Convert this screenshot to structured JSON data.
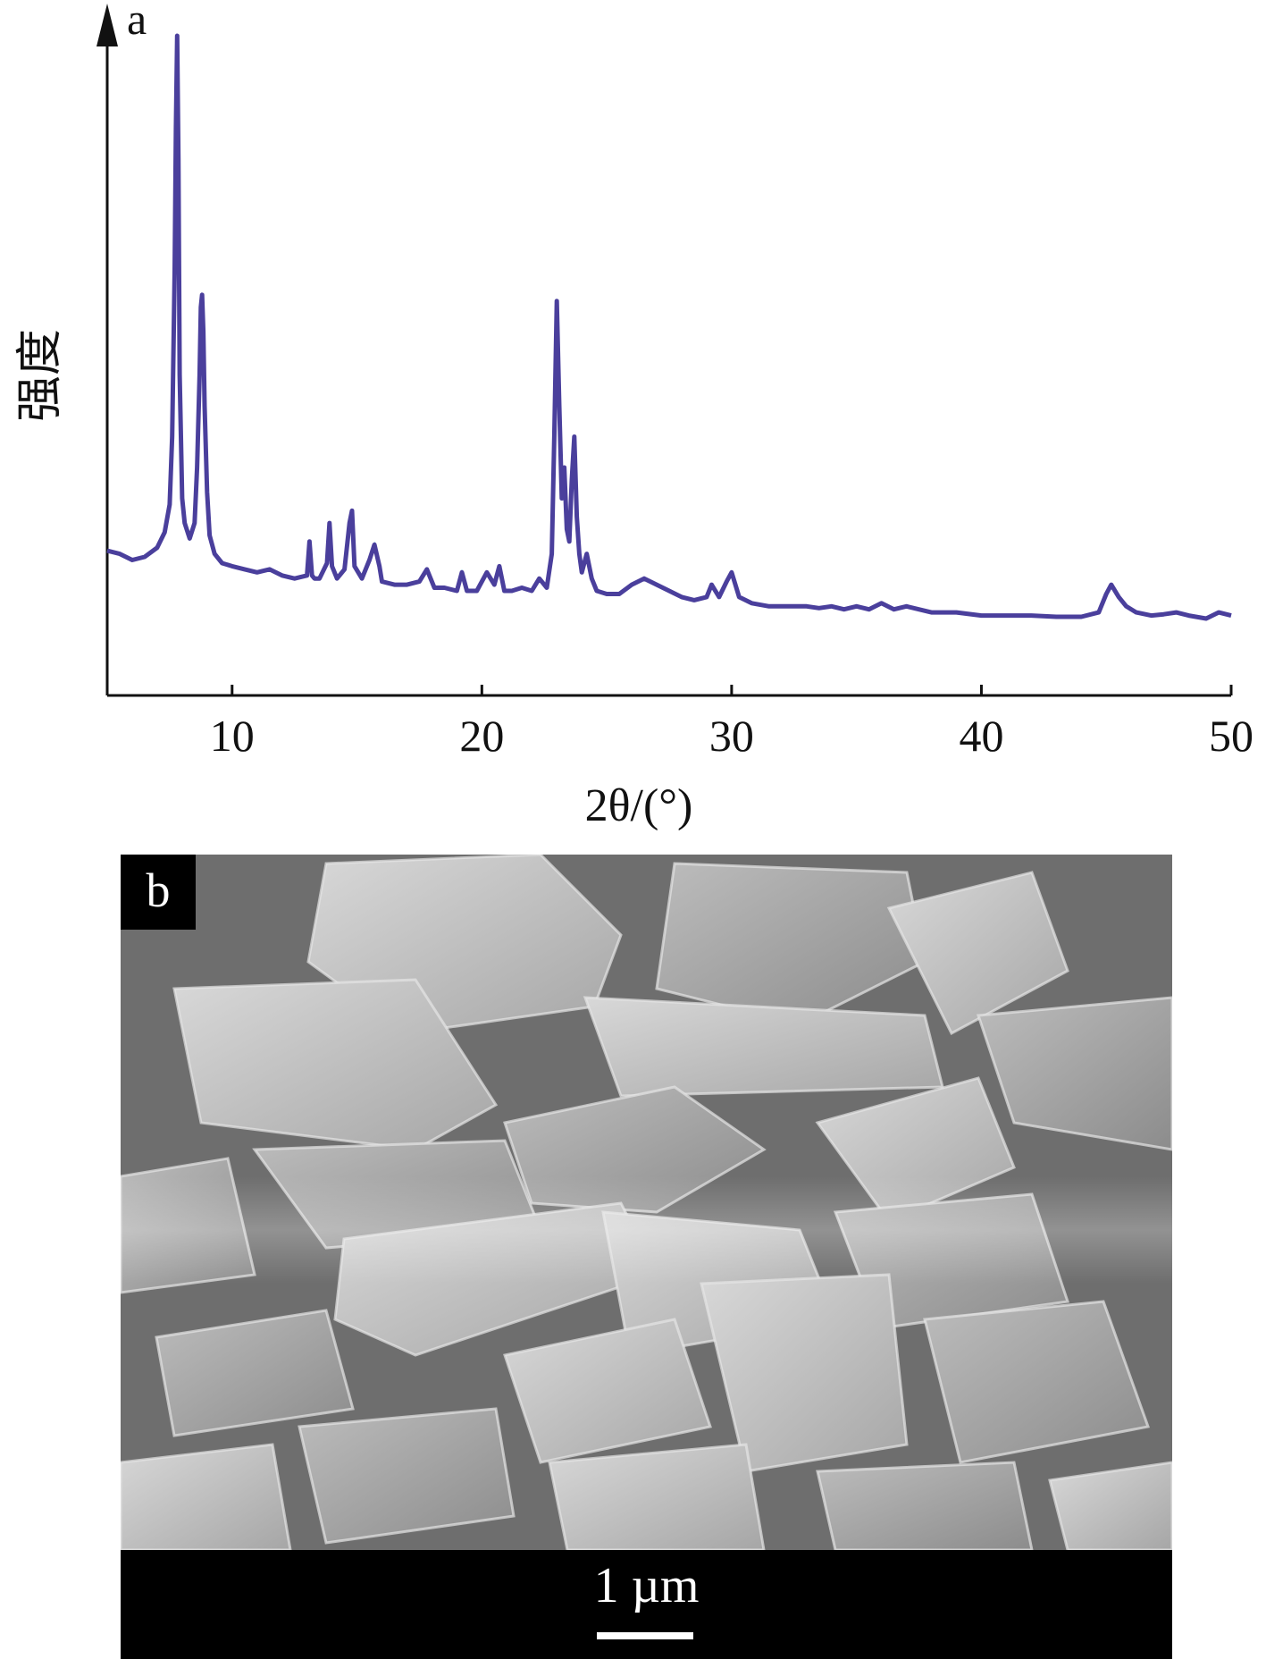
{
  "panel_a": {
    "label": "a",
    "ylabel": "强度",
    "xlabel": "2θ/(°)",
    "line_color": "#4a3f9c",
    "highlight_color": "#59d4e8"
  },
  "panel_b": {
    "label": "b",
    "scale_bar_label": "1 µm",
    "description_colors": {
      "background": "#6f6f6f",
      "crystal_light": "#cfcfcf",
      "crystal_mid": "#a9a9a9",
      "crystal_dark": "#8a8a8a"
    }
  },
  "chart_data": {
    "type": "line",
    "xlabel": "2θ/(°)",
    "ylabel": "强度",
    "xlim": [
      5,
      50
    ],
    "ylim": [
      0,
      100
    ],
    "xticks": [
      10,
      20,
      30,
      40,
      50
    ],
    "grid": false,
    "series": [
      {
        "x": [
          5.0,
          5.5,
          6.0,
          6.5,
          7.0,
          7.3,
          7.5,
          7.6,
          7.7,
          7.75,
          7.8,
          7.85,
          7.9,
          8.0,
          8.1,
          8.3,
          8.5,
          8.6,
          8.7,
          8.75,
          8.8,
          8.85,
          8.9,
          9.0,
          9.1,
          9.3,
          9.6,
          10.0,
          10.5,
          11.0,
          11.5,
          12.0,
          12.5,
          13.0,
          13.1,
          13.2,
          13.3,
          13.5,
          13.8,
          13.9,
          14.0,
          14.2,
          14.5,
          14.7,
          14.8,
          14.9,
          15.2,
          15.5,
          15.7,
          15.9,
          16.0,
          16.5,
          17.0,
          17.5,
          17.8,
          18.1,
          18.5,
          19.0,
          19.2,
          19.4,
          19.8,
          20.2,
          20.5,
          20.7,
          20.9,
          21.2,
          21.6,
          22.0,
          22.3,
          22.6,
          22.8,
          22.9,
          23.0,
          23.1,
          23.2,
          23.3,
          23.4,
          23.5,
          23.6,
          23.7,
          23.8,
          23.9,
          24.0,
          24.2,
          24.4,
          24.6,
          25.0,
          25.5,
          26.0,
          26.5,
          27.0,
          27.5,
          28.0,
          28.5,
          29.0,
          29.2,
          29.5,
          29.8,
          30.0,
          30.3,
          30.8,
          31.5,
          32.0,
          32.5,
          33.0,
          33.5,
          34.0,
          34.5,
          35.0,
          35.5,
          36.0,
          36.5,
          37.0,
          38.0,
          39.0,
          40.0,
          41.0,
          42.0,
          43.0,
          44.0,
          44.7,
          45.0,
          45.2,
          45.5,
          45.8,
          46.2,
          46.8,
          47.3,
          47.8,
          48.3,
          49.0,
          49.5,
          50.0
        ],
        "y": [
          16.5,
          16.0,
          15.0,
          15.5,
          17.0,
          19.5,
          24.0,
          35.0,
          62.0,
          85.0,
          100.0,
          80.0,
          45.0,
          25.0,
          21.0,
          18.5,
          21.0,
          30.0,
          45.0,
          56.0,
          58.0,
          52.0,
          40.0,
          26.0,
          19.0,
          16.0,
          14.5,
          14.0,
          13.5,
          13.0,
          13.5,
          12.5,
          12.0,
          12.5,
          18.0,
          12.5,
          12.0,
          12.0,
          14.5,
          21.0,
          14.0,
          12.0,
          13.5,
          21.0,
          23.0,
          14.0,
          12.0,
          15.0,
          17.5,
          14.0,
          11.5,
          11.0,
          11.0,
          11.5,
          13.5,
          10.5,
          10.5,
          10.0,
          13.0,
          10.0,
          10.0,
          13.0,
          11.0,
          14.0,
          10.0,
          10.0,
          10.5,
          10.0,
          12.0,
          10.5,
          16.0,
          35.0,
          57.0,
          40.0,
          25.0,
          30.0,
          20.0,
          18.0,
          28.0,
          35.0,
          22.0,
          16.0,
          13.0,
          16.0,
          12.0,
          10.0,
          9.5,
          9.5,
          11.0,
          12.0,
          11.0,
          10.0,
          9.0,
          8.5,
          9.0,
          11.0,
          9.0,
          11.5,
          13.0,
          9.0,
          8.0,
          7.5,
          7.5,
          7.5,
          7.5,
          7.2,
          7.5,
          7.0,
          7.5,
          7.0,
          8.0,
          7.0,
          7.5,
          6.5,
          6.5,
          6.0,
          6.0,
          6.0,
          5.8,
          5.8,
          6.5,
          9.5,
          11.0,
          9.0,
          7.5,
          6.5,
          6.0,
          6.2,
          6.5,
          6.0,
          5.5,
          6.5,
          6.0
        ]
      }
    ]
  }
}
